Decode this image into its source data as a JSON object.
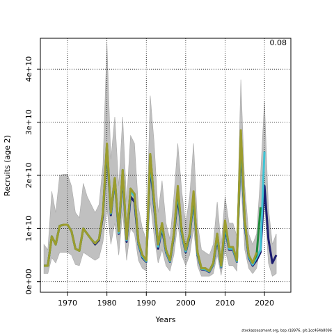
{
  "chart_data": {
    "type": "line",
    "xlabel": "Years",
    "ylabel": "Recruits (age 2)",
    "annotation": "0.08",
    "footer": "stockassessment.org, bsp.r18976, git:1cc464b8096",
    "x": [
      1964,
      1965,
      1966,
      1967,
      1968,
      1969,
      1970,
      1971,
      1972,
      1973,
      1974,
      1975,
      1976,
      1977,
      1978,
      1979,
      1980,
      1981,
      1982,
      1983,
      1984,
      1985,
      1986,
      1987,
      1988,
      1989,
      1990,
      1991,
      1992,
      1993,
      1994,
      1995,
      1996,
      1997,
      1998,
      1999,
      2000,
      2001,
      2002,
      2003,
      2004,
      2005,
      2006,
      2007,
      2008,
      2009,
      2010,
      2011,
      2012,
      2013,
      2014,
      2015,
      2016,
      2017,
      2018,
      2019,
      2020,
      2021,
      2022,
      2023
    ],
    "band": {
      "color": "#c0c0c0",
      "upper": [
        7000000000.0,
        6000000000.0,
        17000000000.0,
        13000000000.0,
        20000000000.0,
        20200000000.0,
        20200000000.0,
        18000000000.0,
        13000000000.0,
        12000000000.0,
        18500000000.0,
        16000000000.0,
        14500000000.0,
        13000000000.0,
        14500000000.0,
        22000000000.0,
        45000000000.0,
        23000000000.0,
        31000000000.0,
        18000000000.0,
        31000000000.0,
        15000000000.0,
        27500000000.0,
        26000000000.0,
        14000000000.0,
        10000000000.0,
        8000000000.0,
        35000000000.0,
        26000000000.0,
        13000000000.0,
        19000000000.0,
        11000000000.0,
        8000000000.0,
        16000000000.0,
        26000000000.0,
        17000000000.0,
        11000000000.0,
        16000000000.0,
        26000000000.0,
        11000000000.0,
        6000000000.0,
        5500000000.0,
        5000000000.0,
        7000000000.0,
        15000000000.0,
        7000000000.0,
        16000000000.0,
        11000000000.0,
        11000000000.0,
        8500000000.0,
        38000000000.0,
        18000000000.0,
        9000000000.0,
        7000000000.0,
        9000000000.0,
        20000000000.0,
        34000000000.0,
        14000000000.0,
        7000000000.0,
        9000000000.0
      ],
      "lower": [
        1500000000.0,
        1500000000.0,
        4500000000.0,
        3500000000.0,
        5500000000.0,
        5500000000.0,
        5500000000.0,
        5000000000.0,
        3200000000.0,
        3000000000.0,
        5500000000.0,
        5000000000.0,
        4500000000.0,
        4000000000.0,
        4500000000.0,
        7500000000.0,
        14000000000.0,
        7000000000.0,
        11000000000.0,
        5000000000.0,
        13000000000.0,
        4000000000.0,
        10000000000.0,
        9000000000.0,
        4000000000.0,
        2500000000.0,
        2000000000.0,
        15000000000.0,
        8500000000.0,
        3500000000.0,
        6000000000.0,
        3000000000.0,
        2000000000.0,
        5000000000.0,
        11000000000.0,
        5000000000.0,
        3000000000.0,
        5000000000.0,
        10000000000.0,
        3000000000.0,
        1000000000.0,
        1000000000.0,
        1000000000.0,
        1500000000.0,
        5000000000.0,
        1200000000.0,
        6000000000.0,
        3000000000.0,
        3000000000.0,
        2000000000.0,
        19000000000.0,
        6000000000.0,
        2500000000.0,
        1500000000.0,
        2500000000.0,
        7000000000.0,
        15000000000.0,
        3500000000.0,
        1000000000.0,
        1500000000.0
      ]
    },
    "series": [
      {
        "color": "#1c1c70",
        "values": [
          3000000000.0,
          3000000000.0,
          8500000000.0,
          7000000000.0,
          10500000000.0,
          10700000000.0,
          10700000000.0,
          9500000000.0,
          6200000000.0,
          5800000000.0,
          10000000000.0,
          9000000000.0,
          8000000000.0,
          7000000000.0,
          7800000000.0,
          12500000000.0,
          25000000000.0,
          12500000000.0,
          19000000000.0,
          9000000000.0,
          20000000000.0,
          7500000000.0,
          16000000000.0,
          15000000000.0,
          7000000000.0,
          4500000000.0,
          3700000000.0,
          22000000000.0,
          14000000000.0,
          6200000000.0,
          10000000000.0,
          5500000000.0,
          3700000000.0,
          8500000000.0,
          16000000000.0,
          8800000000.0,
          5500000000.0,
          8500000000.0,
          15500000000.0,
          5000000000.0,
          2300000000.0,
          2200000000.0,
          1800000000.0,
          3200000000.0,
          8000000000.0,
          2700000000.0,
          10000000000.0,
          6000000000.0,
          6000000000.0,
          3700000000.0,
          26000000000.0,
          10500000000.0,
          4500000000.0,
          3000000000.0,
          4000000000.0,
          5500000000.0,
          18000000000.0,
          8000000000.0,
          3500000000.0,
          5000000000.0
        ]
      },
      {
        "color": "#40c4d4",
        "values": [
          3000000000.0,
          3000000000.0,
          8500000000.0,
          7000000000.0,
          10500000000.0,
          10700000000.0,
          10700000000.0,
          9500000000.0,
          6200000000.0,
          5800000000.0,
          10000000000.0,
          9000000000.0,
          8000000000.0,
          7200000000.0,
          8000000000.0,
          13000000000.0,
          25500000000.0,
          12800000000.0,
          19200000000.0,
          9200000000.0,
          20500000000.0,
          7800000000.0,
          17000000000.0,
          16000000000.0,
          7200000000.0,
          4700000000.0,
          3800000000.0,
          23000000000.0,
          14500000000.0,
          6600000000.0,
          10500000000.0,
          5700000000.0,
          3800000000.0,
          8800000000.0,
          17000000000.0,
          9000000000.0,
          5700000000.0,
          8800000000.0,
          16000000000.0,
          5200000000.0,
          2400000000.0,
          2300000000.0,
          1900000000.0,
          3300000000.0,
          8500000000.0,
          2800000000.0,
          10500000000.0,
          6200000000.0,
          6200000000.0,
          3800000000.0,
          27000000000.0,
          11000000000.0,
          4700000000.0,
          3200000000.0,
          4500000000.0,
          6000000000.0,
          24500000000.0,
          null,
          null,
          null
        ]
      },
      {
        "color": "#1f8a3a",
        "values": [
          3000000000.0,
          3000000000.0,
          8500000000.0,
          7000000000.0,
          10500000000.0,
          10700000000.0,
          10700000000.0,
          9500000000.0,
          6200000000.0,
          5800000000.0,
          10000000000.0,
          9000000000.0,
          8000000000.0,
          7200000000.0,
          8000000000.0,
          13000000000.0,
          25800000000.0,
          13000000000.0,
          19500000000.0,
          9500000000.0,
          21000000000.0,
          8000000000.0,
          17500000000.0,
          16500000000.0,
          7500000000.0,
          5000000000.0,
          4000000000.0,
          24000000000.0,
          15000000000.0,
          7000000000.0,
          11000000000.0,
          6000000000.0,
          4000000000.0,
          9000000000.0,
          17500000000.0,
          9500000000.0,
          6000000000.0,
          9000000000.0,
          16500000000.0,
          5500000000.0,
          2500000000.0,
          2500000000.0,
          2000000000.0,
          3500000000.0,
          9000000000.0,
          3000000000.0,
          11000000000.0,
          6500000000.0,
          6500000000.0,
          4000000000.0,
          28000000000.0,
          11500000000.0,
          5000000000.0,
          3500000000.0,
          5000000000.0,
          14000000000.0,
          null,
          null,
          null,
          null
        ]
      },
      {
        "color": "#9c9c2e",
        "values": [
          3000000000.0,
          3000000000.0,
          8500000000.0,
          7000000000.0,
          10500000000.0,
          10700000000.0,
          10700000000.0,
          9500000000.0,
          6200000000.0,
          5800000000.0,
          10000000000.0,
          9000000000.0,
          8000000000.0,
          7200000000.0,
          8000000000.0,
          13000000000.0,
          26000000000.0,
          13000000000.0,
          19500000000.0,
          9500000000.0,
          21000000000.0,
          8000000000.0,
          17500000000.0,
          16500000000.0,
          7500000000.0,
          5000000000.0,
          4000000000.0,
          24000000000.0,
          15000000000.0,
          7000000000.0,
          11000000000.0,
          6000000000.0,
          4000000000.0,
          9000000000.0,
          18000000000.0,
          9500000000.0,
          6000000000.0,
          9000000000.0,
          17000000000.0,
          5500000000.0,
          2500000000.0,
          2500000000.0,
          2000000000.0,
          3500000000.0,
          9000000000.0,
          3000000000.0,
          11500000000.0,
          6500000000.0,
          6500000000.0,
          4000000000.0,
          28500000000.0,
          11500000000.0,
          5000000000.0,
          3500000000.0,
          5500000000.0,
          null,
          null,
          null,
          null,
          null
        ]
      }
    ],
    "xlim": [
      1963.1,
      2026.7
    ],
    "ylim": [
      -2000000000.0,
      45800000000.0
    ],
    "xticks": [
      1970,
      1980,
      1990,
      2000,
      2010,
      2020
    ],
    "yticks": [
      {
        "value": 0,
        "label": "0e+00"
      },
      {
        "value": 10000000000.0,
        "label": "1e+10"
      },
      {
        "value": 20000000000.0,
        "label": "2e+10"
      },
      {
        "value": 30000000000.0,
        "label": "3e+10"
      },
      {
        "value": 40000000000.0,
        "label": "4e+10"
      }
    ],
    "grid": true
  }
}
